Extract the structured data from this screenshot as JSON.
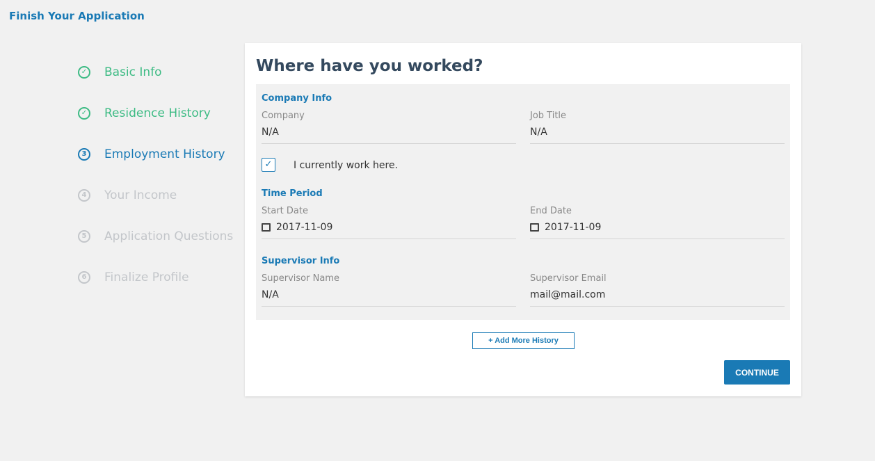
{
  "app_title": "Finish Your Application",
  "steps": [
    {
      "label": "Basic Info",
      "status": "done",
      "icon": "✓"
    },
    {
      "label": "Residence History",
      "status": "done",
      "icon": "✓"
    },
    {
      "label": "Employment History",
      "status": "cur",
      "icon": "3"
    },
    {
      "label": "Your Income",
      "status": "todo",
      "icon": "4"
    },
    {
      "label": "Application Questions",
      "status": "todo",
      "icon": "5"
    },
    {
      "label": "Finalize Profile",
      "status": "todo",
      "icon": "6"
    }
  ],
  "form": {
    "title": "Where have you worked?",
    "company_info": "Company Info",
    "company_label": "Company",
    "company_value": "N/A",
    "job_title_label": "Job Title",
    "job_title_value": "N/A",
    "current_label": "I currently work here.",
    "current_checked": true,
    "time_period": "Time Period",
    "start_label": "Start Date",
    "start_value": "2017-11-09",
    "end_label": "End Date",
    "end_value": "2017-11-09",
    "supervisor_info": "Supervisor Info",
    "sup_name_label": "Supervisor Name",
    "sup_name_value": "N/A",
    "sup_email_label": "Supervisor Email",
    "sup_email_value": "mail@mail.com",
    "add_more": "+ Add More History",
    "continue": "CONTINUE"
  }
}
